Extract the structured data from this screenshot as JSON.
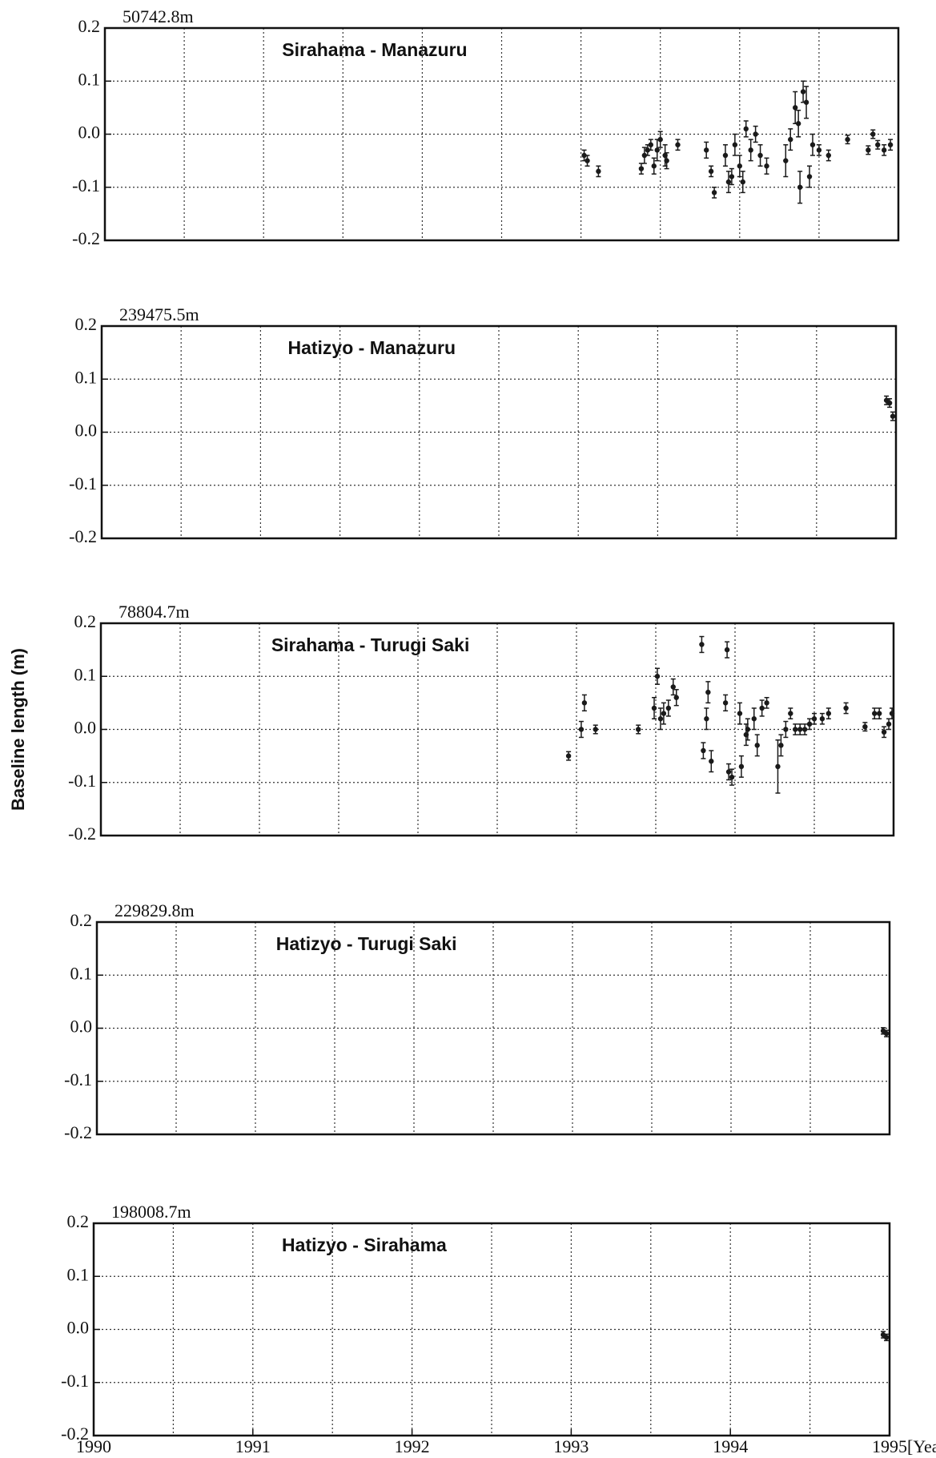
{
  "chart_data": [
    {
      "type": "scatter",
      "title": "Sirahama - Manazuru",
      "annotation": "50742.8m",
      "xlim": [
        1990,
        1995
      ],
      "ylim": [
        -0.2,
        0.2
      ],
      "yticks": [
        0.2,
        0.1,
        {
          "value": 0,
          "label": "0.0"
        },
        -0.1,
        -0.2
      ],
      "xgrid": [
        1990.5,
        1991,
        1991.5,
        1992,
        1992.5,
        1993,
        1993.5,
        1994,
        1994.5
      ],
      "grid": true,
      "color": "#1a1a1a",
      "x": [
        1993.02,
        1993.04,
        1993.11,
        1993.38,
        1993.4,
        1993.42,
        1993.44,
        1993.46,
        1993.48,
        1993.5,
        1993.53,
        1993.54,
        1993.61,
        1993.79,
        1993.82,
        1993.84,
        1993.91,
        1993.93,
        1993.95,
        1993.97,
        1994.0,
        1994.02,
        1994.04,
        1994.07,
        1994.1,
        1994.13,
        1994.17,
        1994.29,
        1994.32,
        1994.35,
        1994.37,
        1994.38,
        1994.4,
        1994.42,
        1994.44,
        1994.46,
        1994.5,
        1994.56,
        1994.68,
        1994.81,
        1994.84,
        1994.87,
        1994.91,
        1994.95
      ],
      "values": [
        -0.04,
        -0.05,
        -0.07,
        -0.065,
        -0.04,
        -0.03,
        -0.02,
        -0.06,
        -0.03,
        -0.01,
        -0.04,
        -0.05,
        -0.02,
        -0.03,
        -0.07,
        -0.11,
        -0.04,
        -0.09,
        -0.08,
        -0.02,
        -0.06,
        -0.09,
        0.01,
        -0.03,
        0.0,
        -0.04,
        -0.06,
        -0.05,
        -0.01,
        0.05,
        0.02,
        -0.1,
        0.08,
        0.06,
        -0.08,
        -0.02,
        -0.03,
        -0.04,
        -0.01,
        -0.03,
        0.0,
        -0.02,
        -0.03,
        -0.02
      ],
      "errors": [
        0.01,
        0.01,
        0.01,
        0.01,
        0.015,
        0.01,
        0.01,
        0.015,
        0.02,
        0.015,
        0.02,
        0.015,
        0.01,
        0.015,
        0.01,
        0.01,
        0.02,
        0.02,
        0.015,
        0.02,
        0.02,
        0.02,
        0.015,
        0.02,
        0.015,
        0.02,
        0.015,
        0.03,
        0.02,
        0.03,
        0.025,
        0.03,
        0.02,
        0.03,
        0.02,
        0.02,
        0.01,
        0.01,
        0.008,
        0.008,
        0.008,
        0.008,
        0.01,
        0.01
      ]
    },
    {
      "type": "scatter",
      "title": "Hatizyo - Manazuru",
      "annotation": "239475.5m",
      "xlim": [
        1990,
        1995
      ],
      "ylim": [
        -0.2,
        0.2
      ],
      "yticks": [
        0.2,
        0.1,
        {
          "value": 0,
          "label": "0.0"
        },
        -0.1,
        -0.2
      ],
      "xgrid": [
        1990.5,
        1991,
        1991.5,
        1992,
        1992.5,
        1993,
        1993.5,
        1994,
        1994.5
      ],
      "grid": true,
      "color": "#1a1a1a",
      "x": [
        1994.94,
        1994.96,
        1994.98
      ],
      "values": [
        0.06,
        0.055,
        0.03
      ],
      "errors": [
        0.008,
        0.008,
        0.008
      ]
    },
    {
      "type": "scatter",
      "title": "Sirahama - Turugi Saki",
      "annotation": "78804.7m",
      "ylabel": "Baseline length (m)",
      "xlim": [
        1990,
        1995
      ],
      "ylim": [
        -0.2,
        0.2
      ],
      "yticks": [
        0.2,
        0.1,
        {
          "value": 0,
          "label": "0.0"
        },
        -0.1,
        -0.2
      ],
      "xgrid": [
        1990.5,
        1991,
        1991.5,
        1992,
        1992.5,
        1993,
        1993.5,
        1994,
        1994.5
      ],
      "grid": true,
      "color": "#1a1a1a",
      "x": [
        1992.95,
        1993.03,
        1993.05,
        1993.12,
        1993.39,
        1993.49,
        1993.51,
        1993.53,
        1993.55,
        1993.58,
        1993.61,
        1993.63,
        1993.79,
        1993.8,
        1993.82,
        1993.83,
        1993.85,
        1993.94,
        1993.95,
        1993.96,
        1993.98,
        1994.03,
        1994.04,
        1994.07,
        1994.08,
        1994.12,
        1994.14,
        1994.17,
        1994.2,
        1994.27,
        1994.29,
        1994.32,
        1994.35,
        1994.38,
        1994.41,
        1994.44,
        1994.47,
        1994.5,
        1994.55,
        1994.59,
        1994.7,
        1994.82,
        1994.88,
        1994.91,
        1994.94,
        1994.97,
        1994.99
      ],
      "values": [
        -0.05,
        0.0,
        0.05,
        0.0,
        0.0,
        0.04,
        0.1,
        0.02,
        0.03,
        0.04,
        0.08,
        0.06,
        0.16,
        -0.04,
        0.02,
        0.07,
        -0.06,
        0.05,
        0.15,
        -0.08,
        -0.09,
        0.03,
        -0.07,
        -0.01,
        0.0,
        0.02,
        -0.03,
        0.04,
        0.05,
        -0.07,
        -0.03,
        0.0,
        0.03,
        0.0,
        0.0,
        0.0,
        0.01,
        0.02,
        0.02,
        0.03,
        0.04,
        0.005,
        0.03,
        0.03,
        -0.005,
        0.01,
        0.03
      ],
      "errors": [
        0.008,
        0.015,
        0.015,
        0.008,
        0.008,
        0.02,
        0.015,
        0.02,
        0.02,
        0.015,
        0.015,
        0.015,
        0.015,
        0.015,
        0.02,
        0.02,
        0.02,
        0.015,
        0.015,
        0.015,
        0.015,
        0.02,
        0.02,
        0.02,
        0.02,
        0.02,
        0.02,
        0.015,
        0.01,
        0.05,
        0.02,
        0.015,
        0.01,
        0.01,
        0.01,
        0.01,
        0.01,
        0.01,
        0.01,
        0.01,
        0.01,
        0.008,
        0.01,
        0.01,
        0.01,
        0.01,
        0.01
      ]
    },
    {
      "type": "scatter",
      "title": "Hatizyo - Turugi Saki",
      "annotation": "229829.8m",
      "xlim": [
        1990,
        1995
      ],
      "ylim": [
        -0.2,
        0.2
      ],
      "yticks": [
        0.2,
        0.1,
        {
          "value": 0,
          "label": "0.0"
        },
        -0.1,
        -0.2
      ],
      "xgrid": [
        1990.5,
        1991,
        1991.5,
        1992,
        1992.5,
        1993,
        1993.5,
        1994,
        1994.5
      ],
      "grid": true,
      "color": "#1a1a1a",
      "x": [
        1994.96,
        1994.98
      ],
      "values": [
        -0.005,
        -0.01
      ],
      "errors": [
        0.006,
        0.006
      ]
    },
    {
      "type": "scatter",
      "title": "Hatizyo - Sirahama",
      "annotation": "198008.7m",
      "xlim": [
        1990,
        1995
      ],
      "ylim": [
        -0.2,
        0.2
      ],
      "yticks": [
        0.2,
        0.1,
        {
          "value": 0,
          "label": "0.0"
        },
        -0.1,
        -0.2
      ],
      "xgrid": [
        1990.5,
        1991,
        1991.5,
        1992,
        1992.5,
        1993,
        1993.5,
        1994,
        1994.5
      ],
      "grid": true,
      "color": "#1a1a1a",
      "xticks": [
        1990,
        1991,
        1992,
        1993,
        1994,
        {
          "value": 1995,
          "label": "1995[Year]"
        }
      ],
      "x": [
        1994.96,
        1994.98
      ],
      "values": [
        -0.01,
        -0.015
      ],
      "errors": [
        0.006,
        0.006
      ]
    }
  ]
}
